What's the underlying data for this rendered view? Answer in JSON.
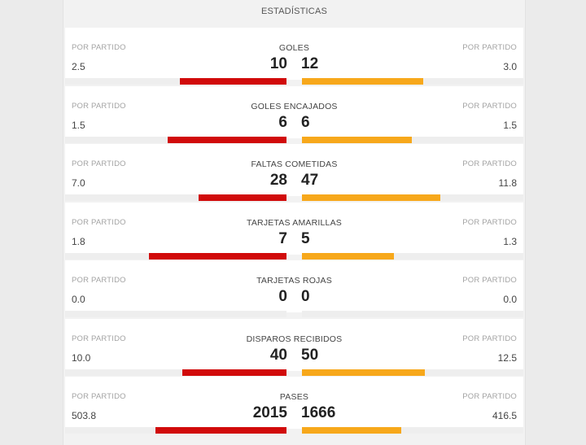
{
  "header": {
    "title": "ESTADÍSTICAS"
  },
  "per_match_label": "POR PARTIDO",
  "colors": {
    "home": "#d10b0b",
    "away": "#f7a81b"
  },
  "stats": [
    {
      "label": "GOLES",
      "home": "10",
      "away": "12",
      "home_per": "2.5",
      "away_per": "3.0",
      "home_fill": 0.45,
      "away_fill": 0.55
    },
    {
      "label": "GOLES ENCAJADOS",
      "home": "6",
      "away": "6",
      "home_per": "1.5",
      "away_per": "1.5",
      "home_fill": 0.5,
      "away_fill": 0.5
    },
    {
      "label": "FALTAS COMETIDAS",
      "home": "28",
      "away": "47",
      "home_per": "7.0",
      "away_per": "11.8",
      "home_fill": 0.37,
      "away_fill": 0.63
    },
    {
      "label": "TARJETAS AMARILLAS",
      "home": "7",
      "away": "5",
      "home_per": "1.8",
      "away_per": "1.3",
      "home_fill": 0.58,
      "away_fill": 0.42
    },
    {
      "label": "TARJETAS ROJAS",
      "home": "0",
      "away": "0",
      "home_per": "0.0",
      "away_per": "0.0",
      "home_fill": 0,
      "away_fill": 0
    },
    {
      "label": "DISPAROS RECIBIDOS",
      "home": "40",
      "away": "50",
      "home_per": "10.0",
      "away_per": "12.5",
      "home_fill": 0.44,
      "away_fill": 0.56
    },
    {
      "label": "PASES",
      "home": "2015",
      "away": "1666",
      "home_per": "503.8",
      "away_per": "416.5",
      "home_fill": 0.55,
      "away_fill": 0.45
    }
  ]
}
